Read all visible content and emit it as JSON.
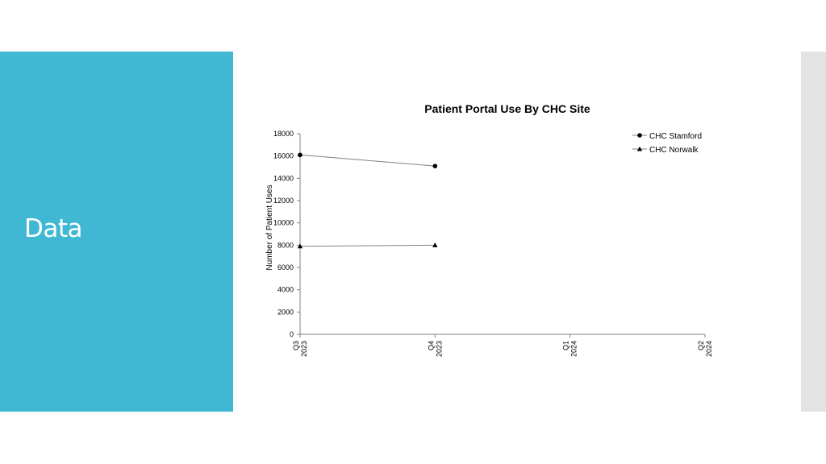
{
  "slide": {
    "title": "Data"
  },
  "colors": {
    "side_panel": "#40b8d3",
    "right_bar": "#e3e3e3",
    "axis": "#808080",
    "series_line": "#808080",
    "marker": "#000000"
  },
  "chart_data": {
    "type": "line",
    "title": "Patient Portal Use By CHC Site",
    "xlabel": "",
    "ylabel": "Number of Patient Uses",
    "categories": [
      [
        "Q3",
        "2023"
      ],
      [
        "Q4",
        "2023"
      ],
      [
        "Q1",
        "2024"
      ],
      [
        "Q2",
        "2024"
      ]
    ],
    "ylim": [
      0,
      18000
    ],
    "yticks": [
      0,
      2000,
      4000,
      6000,
      8000,
      10000,
      12000,
      14000,
      16000,
      18000
    ],
    "grid": false,
    "legend_position": "top-right",
    "series": [
      {
        "name": "CHC Stamford",
        "marker": "circle",
        "values": [
          16100,
          15100,
          null,
          null
        ]
      },
      {
        "name": "CHC Norwalk",
        "marker": "triangle",
        "values": [
          7900,
          8000,
          null,
          null
        ]
      }
    ]
  }
}
